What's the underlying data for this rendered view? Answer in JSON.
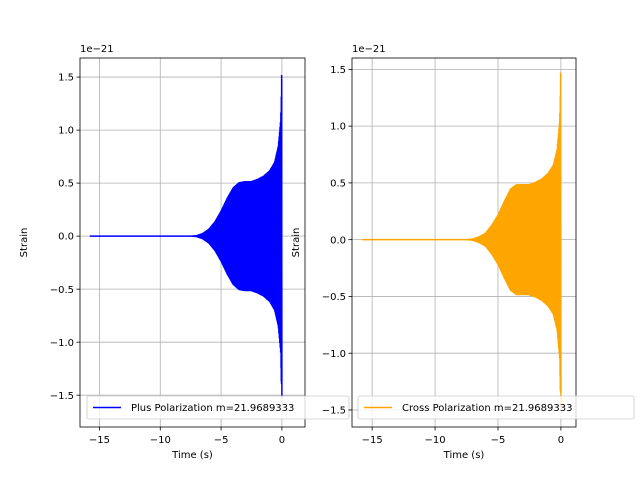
{
  "chart_data": [
    {
      "type": "line",
      "xlabel": "Time (s)",
      "ylabel": "Strain",
      "offset_text": "1e−21",
      "xlim": [
        -16.6,
        1.9
      ],
      "ylim": [
        -1.8,
        1.68
      ],
      "xticks": [
        -15,
        -10,
        -5,
        0
      ],
      "xtick_labels": [
        "−15",
        "−10",
        "−5",
        "0"
      ],
      "yticks": [
        -1.5,
        -1.0,
        -0.5,
        0.0,
        0.5,
        1.0,
        1.5
      ],
      "ytick_labels": [
        "−1.5",
        "−1.0",
        "−0.5",
        "0.0",
        "0.5",
        "1.0",
        "1.5"
      ],
      "grid": true,
      "legend": "lower-right",
      "series": [
        {
          "name": "Plus Polarization m=21.9689333",
          "color": "#0000ff",
          "t_start": -15.8,
          "t_end": 0.0,
          "envelope": [
            [
              -15.8,
              0.0
            ],
            [
              -8.0,
              0.0
            ],
            [
              -7.0,
              0.01
            ],
            [
              -6.5,
              0.03
            ],
            [
              -6.0,
              0.07
            ],
            [
              -5.5,
              0.14
            ],
            [
              -5.0,
              0.24
            ],
            [
              -4.5,
              0.36
            ],
            [
              -4.0,
              0.46
            ],
            [
              -3.5,
              0.51
            ],
            [
              -3.0,
              0.52
            ],
            [
              -2.5,
              0.52
            ],
            [
              -2.0,
              0.54
            ],
            [
              -1.5,
              0.57
            ],
            [
              -1.0,
              0.62
            ],
            [
              -0.6,
              0.7
            ],
            [
              -0.3,
              0.85
            ],
            [
              -0.1,
              1.1
            ],
            [
              0.0,
              1.52
            ]
          ]
        }
      ]
    },
    {
      "type": "line",
      "xlabel": "Time (s)",
      "ylabel": "Strain",
      "offset_text": "1e−21",
      "xlim": [
        -16.6,
        1.2
      ],
      "ylim": [
        -1.65,
        1.6
      ],
      "xticks": [
        -15,
        -10,
        -5,
        0
      ],
      "xtick_labels": [
        "−15",
        "−10",
        "−5",
        "0"
      ],
      "yticks": [
        -1.5,
        -1.0,
        -0.5,
        0.0,
        0.5,
        1.0,
        1.5
      ],
      "ytick_labels": [
        "−1.5",
        "−1.0",
        "−0.5",
        "0.0",
        "0.5",
        "1.0",
        "1.5"
      ],
      "grid": true,
      "legend": "lower-right",
      "series": [
        {
          "name": "Cross Polarization m=21.9689333",
          "color": "#ffa500",
          "t_start": -15.8,
          "t_end": 0.0,
          "envelope": [
            [
              -15.8,
              0.0
            ],
            [
              -8.0,
              0.0
            ],
            [
              -7.0,
              0.01
            ],
            [
              -6.5,
              0.03
            ],
            [
              -6.0,
              0.06
            ],
            [
              -5.5,
              0.13
            ],
            [
              -5.0,
              0.22
            ],
            [
              -4.5,
              0.34
            ],
            [
              -4.0,
              0.45
            ],
            [
              -3.5,
              0.49
            ],
            [
              -3.0,
              0.49
            ],
            [
              -2.5,
              0.49
            ],
            [
              -2.0,
              0.51
            ],
            [
              -1.5,
              0.54
            ],
            [
              -1.0,
              0.59
            ],
            [
              -0.6,
              0.66
            ],
            [
              -0.3,
              0.8
            ],
            [
              -0.1,
              1.05
            ],
            [
              0.0,
              1.47
            ]
          ]
        }
      ]
    }
  ]
}
